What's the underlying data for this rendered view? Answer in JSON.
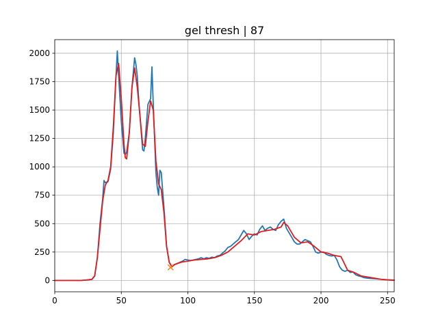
{
  "chart_data": {
    "type": "line",
    "title": "gel thresh | 87",
    "xlabel": "",
    "ylabel": "",
    "xlim": [
      0,
      255
    ],
    "ylim": [
      -100,
      2120
    ],
    "xticks": [
      0,
      50,
      100,
      150,
      200,
      250
    ],
    "yticks": [
      0,
      250,
      500,
      750,
      1000,
      1250,
      1500,
      1750,
      2000
    ],
    "grid": true,
    "legend": "none",
    "series": [
      {
        "color": "#1f77b4",
        "x": [
          0,
          20,
          25,
          28,
          30,
          32,
          34,
          36,
          37,
          38,
          40,
          42,
          44,
          46,
          47,
          48,
          49,
          50,
          52,
          53,
          54,
          56,
          58,
          60,
          61,
          62,
          63,
          64,
          66,
          67,
          68,
          70,
          72,
          73,
          74,
          75,
          76,
          77,
          78,
          79,
          80,
          82,
          84,
          86,
          88,
          90,
          92,
          94,
          96,
          98,
          100,
          102,
          104,
          106,
          108,
          110,
          112,
          114,
          116,
          118,
          120,
          122,
          124,
          126,
          128,
          130,
          132,
          134,
          136,
          138,
          140,
          142,
          144,
          146,
          148,
          150,
          152,
          154,
          156,
          158,
          160,
          162,
          164,
          166,
          168,
          170,
          172,
          174,
          176,
          178,
          180,
          182,
          184,
          186,
          188,
          190,
          192,
          194,
          196,
          198,
          200,
          202,
          204,
          206,
          208,
          210,
          212,
          214,
          216,
          218,
          220,
          222,
          224,
          226,
          228,
          230,
          232,
          235,
          240,
          245,
          250,
          255
        ],
        "y": [
          0,
          0,
          5,
          10,
          40,
          200,
          500,
          720,
          880,
          860,
          870,
          980,
          1300,
          1800,
          2020,
          1800,
          1600,
          1400,
          1120,
          1110,
          1130,
          1300,
          1700,
          1960,
          1900,
          1800,
          1600,
          1450,
          1150,
          1140,
          1250,
          1550,
          1600,
          1880,
          1550,
          1250,
          950,
          820,
          750,
          970,
          950,
          650,
          300,
          160,
          120,
          140,
          150,
          160,
          170,
          185,
          180,
          175,
          180,
          185,
          190,
          200,
          190,
          200,
          195,
          205,
          200,
          215,
          220,
          240,
          260,
          290,
          300,
          320,
          340,
          360,
          400,
          440,
          410,
          360,
          390,
          410,
          400,
          450,
          480,
          440,
          460,
          470,
          450,
          440,
          490,
          520,
          540,
          460,
          420,
          380,
          340,
          320,
          320,
          340,
          360,
          350,
          340,
          300,
          250,
          240,
          250,
          250,
          230,
          220,
          215,
          220,
          180,
          120,
          90,
          80,
          90,
          70,
          75,
          50,
          40,
          35,
          25,
          20,
          15,
          10,
          5,
          2
        ]
      },
      {
        "color": "#e41a1c",
        "x": [
          0,
          20,
          25,
          28,
          30,
          32,
          34,
          36,
          38,
          40,
          42,
          44,
          46,
          48,
          50,
          52,
          53,
          54,
          56,
          58,
          60,
          62,
          64,
          66,
          68,
          70,
          72,
          74,
          76,
          78,
          80,
          82,
          84,
          86,
          88,
          90,
          95,
          100,
          105,
          110,
          115,
          120,
          125,
          130,
          135,
          140,
          145,
          150,
          155,
          160,
          165,
          170,
          172,
          175,
          180,
          185,
          190,
          195,
          200,
          205,
          210,
          215,
          220,
          225,
          230,
          235,
          240,
          245,
          250,
          255
        ],
        "y": [
          0,
          0,
          5,
          10,
          40,
          200,
          450,
          700,
          840,
          880,
          1000,
          1350,
          1800,
          1910,
          1600,
          1200,
          1080,
          1070,
          1300,
          1700,
          1870,
          1700,
          1450,
          1200,
          1180,
          1400,
          1580,
          1500,
          1050,
          850,
          800,
          600,
          300,
          160,
          120,
          140,
          160,
          170,
          180,
          185,
          190,
          200,
          220,
          250,
          300,
          350,
          410,
          400,
          430,
          440,
          450,
          470,
          510,
          480,
          380,
          330,
          340,
          300,
          250,
          240,
          220,
          210,
          90,
          70,
          40,
          30,
          20,
          10,
          5,
          2
        ]
      }
    ],
    "marker": {
      "x": 87,
      "y": 115,
      "symbol": "x",
      "color": "#ff7f0e"
    }
  }
}
